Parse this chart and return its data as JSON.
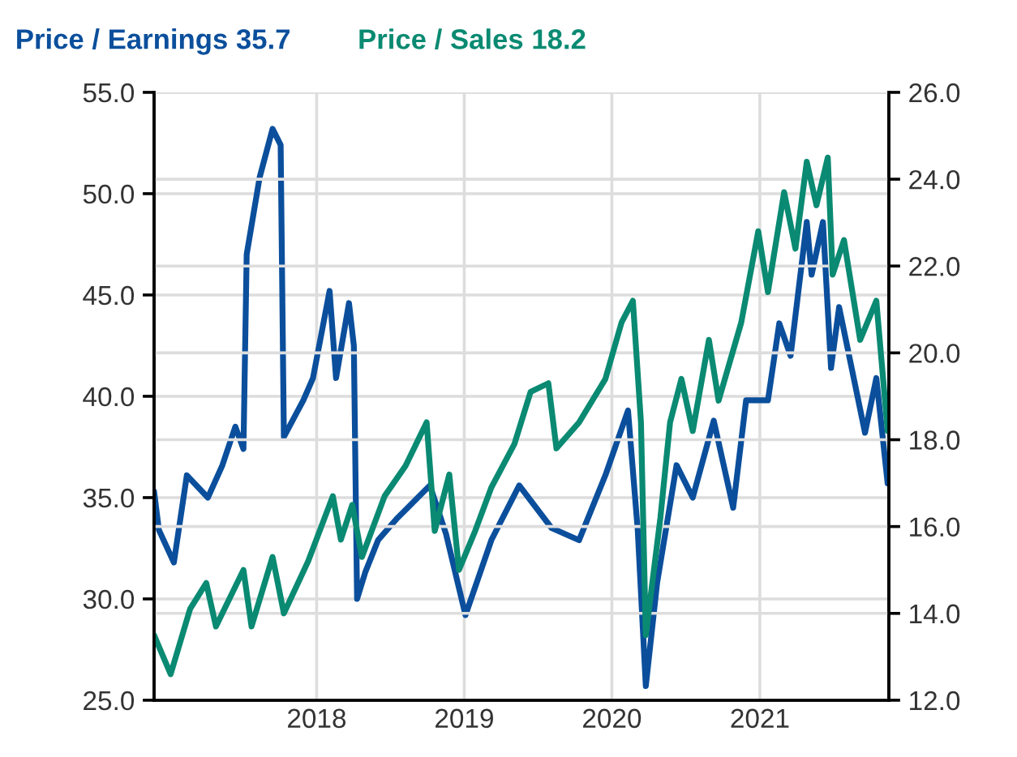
{
  "chart_data": {
    "type": "line",
    "xlim": [
      "2016-11-25",
      "2021-11-16"
    ],
    "xticks": [
      {
        "value": "2018-01-01",
        "label": "2018"
      },
      {
        "value": "2019-01-01",
        "label": "2019"
      },
      {
        "value": "2020-01-01",
        "label": "2020"
      },
      {
        "value": "2021-01-01",
        "label": "2021"
      }
    ],
    "ylim": [
      25,
      55
    ],
    "yticks": [
      {
        "value": 25,
        "label": "25.0"
      },
      {
        "value": 30,
        "label": "30.0"
      },
      {
        "value": 35,
        "label": "35.0"
      },
      {
        "value": 40,
        "label": "40.0"
      },
      {
        "value": 45,
        "label": "45.0"
      },
      {
        "value": 50,
        "label": "50.0"
      },
      {
        "value": 55,
        "label": "55.0"
      }
    ],
    "y2lim": [
      12,
      26
    ],
    "y2ticks": [
      {
        "value": 12,
        "label": "12.0"
      },
      {
        "value": 14,
        "label": "14.0"
      },
      {
        "value": 16,
        "label": "16.0"
      },
      {
        "value": 18,
        "label": "18.0"
      },
      {
        "value": 20,
        "label": "20.0"
      },
      {
        "value": 22,
        "label": "22.0"
      },
      {
        "value": 24,
        "label": "24.0"
      },
      {
        "value": 26,
        "label": "26.0"
      }
    ],
    "grid": true,
    "legend": "top left",
    "series": [
      {
        "name": "Price / Earnings 35.7",
        "color": "#0b4f9c",
        "x": [
          "2016-11-25",
          "2016-12-07",
          "2017-01-13",
          "2017-02-14",
          "2017-04-07",
          "2017-05-13",
          "2017-06-14",
          "2017-07-04",
          "2017-07-12",
          "2017-08-13",
          "2017-09-14",
          "2017-10-04",
          "2017-10-12",
          "2017-11-29",
          "2017-12-23",
          "2018-02-02",
          "2018-02-18",
          "2018-03-22",
          "2018-04-03",
          "2018-04-11",
          "2018-05-01",
          "2018-06-02",
          "2018-07-20",
          "2018-10-08",
          "2018-11-17",
          "2019-01-04",
          "2019-03-09",
          "2019-05-17",
          "2019-08-05",
          "2019-10-12",
          "2019-12-16",
          "2020-02-10",
          "2020-03-05",
          "2020-03-25",
          "2020-04-22",
          "2020-06-09",
          "2020-07-19",
          "2020-09-09",
          "2020-10-27",
          "2020-11-28",
          "2021-01-21",
          "2021-02-18",
          "2021-03-18",
          "2021-04-27",
          "2021-05-09",
          "2021-06-06",
          "2021-06-26",
          "2021-07-16",
          "2021-09-18",
          "2021-10-16",
          "2021-11-13"
        ],
        "values": [
          35.3,
          33.4,
          31.8,
          36.1,
          35.0,
          36.6,
          38.5,
          37.4,
          47.0,
          50.8,
          53.2,
          52.4,
          38.0,
          39.8,
          40.9,
          45.2,
          40.9,
          44.6,
          42.5,
          30.0,
          31.3,
          32.9,
          34.0,
          35.6,
          33.2,
          29.2,
          32.9,
          35.6,
          33.5,
          32.9,
          36.1,
          39.3,
          33.4,
          25.7,
          30.8,
          36.6,
          35.0,
          38.8,
          34.5,
          39.8,
          39.8,
          43.6,
          42.0,
          48.6,
          46.0,
          48.6,
          41.4,
          44.4,
          38.2,
          40.9,
          35.7
        ]
      },
      {
        "name": "Price / Sales 18.2",
        "color": "#0a8a72",
        "axis": "y2",
        "x": [
          "2016-11-25",
          "2017-01-05",
          "2017-02-22",
          "2017-04-03",
          "2017-04-27",
          "2017-07-04",
          "2017-07-24",
          "2017-09-14",
          "2017-10-12",
          "2017-12-11",
          "2018-02-10",
          "2018-03-02",
          "2018-03-30",
          "2018-04-23",
          "2018-06-18",
          "2018-08-09",
          "2018-09-30",
          "2018-10-20",
          "2018-11-25",
          "2018-12-19",
          "2019-01-28",
          "2019-03-09",
          "2019-05-05",
          "2019-06-14",
          "2019-07-28",
          "2019-08-17",
          "2019-10-12",
          "2019-12-16",
          "2020-01-25",
          "2020-02-22",
          "2020-03-13",
          "2020-03-25",
          "2020-04-30",
          "2020-05-24",
          "2020-06-21",
          "2020-07-19",
          "2020-08-28",
          "2020-09-21",
          "2020-11-16",
          "2020-12-28",
          "2021-01-21",
          "2021-03-02",
          "2021-03-30",
          "2021-04-27",
          "2021-05-21",
          "2021-06-18",
          "2021-06-30",
          "2021-07-28",
          "2021-09-06",
          "2021-10-16",
          "2021-11-13"
        ],
        "values": [
          13.5,
          12.6,
          14.1,
          14.7,
          13.7,
          15.0,
          13.7,
          15.3,
          14.0,
          15.2,
          16.7,
          15.7,
          16.5,
          15.3,
          16.7,
          17.4,
          18.4,
          15.9,
          17.2,
          15.0,
          15.9,
          16.9,
          17.9,
          19.1,
          19.3,
          17.8,
          18.4,
          19.4,
          20.7,
          21.2,
          18.4,
          13.5,
          16.2,
          18.4,
          19.4,
          18.2,
          20.3,
          18.9,
          20.7,
          22.8,
          21.4,
          23.7,
          22.4,
          24.4,
          23.4,
          24.5,
          21.8,
          22.6,
          20.3,
          21.2,
          18.2
        ]
      }
    ]
  }
}
